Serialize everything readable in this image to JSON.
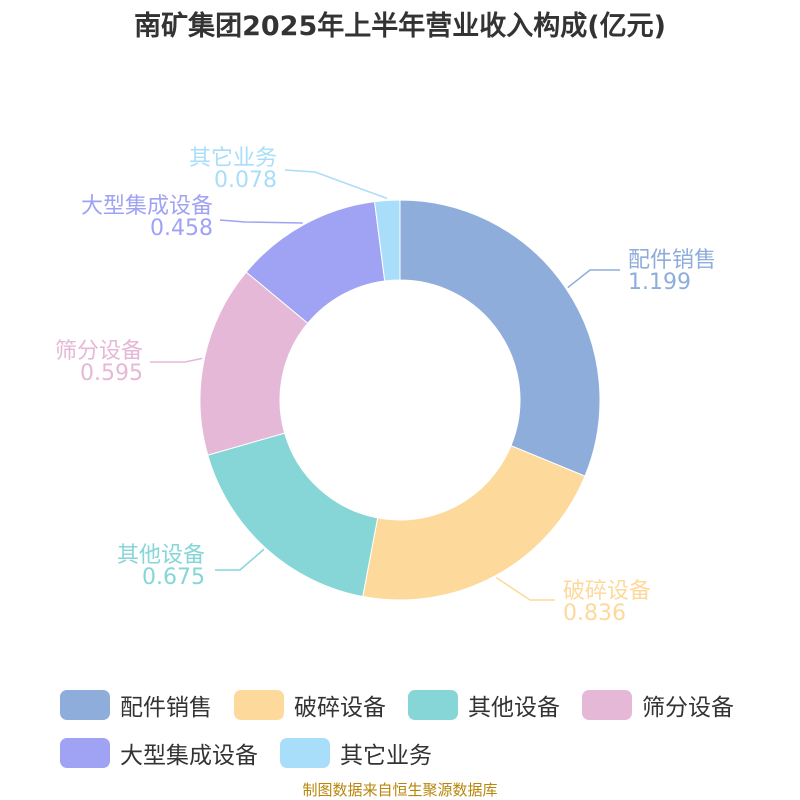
{
  "chart_data": {
    "type": "pie",
    "title": "南矿集团2025年上半年营业收入构成(亿元)",
    "categories": [
      "配件销售",
      "破碎设备",
      "其他设备",
      "筛分设备",
      "大型集成设备",
      "其它业务"
    ],
    "values": [
      1.199,
      0.836,
      0.675,
      0.595,
      0.458,
      0.078
    ],
    "value_labels": [
      "1.199",
      "0.836",
      "0.675",
      "0.595",
      "0.458",
      "0.078"
    ],
    "colors": [
      "#8eaddb",
      "#fdd99b",
      "#86d5d7",
      "#e6b8d8",
      "#a0a2f4",
      "#a8def9"
    ],
    "donut": true,
    "legend_position": "bottom"
  },
  "source_note": "制图数据来自恒生聚源数据库"
}
